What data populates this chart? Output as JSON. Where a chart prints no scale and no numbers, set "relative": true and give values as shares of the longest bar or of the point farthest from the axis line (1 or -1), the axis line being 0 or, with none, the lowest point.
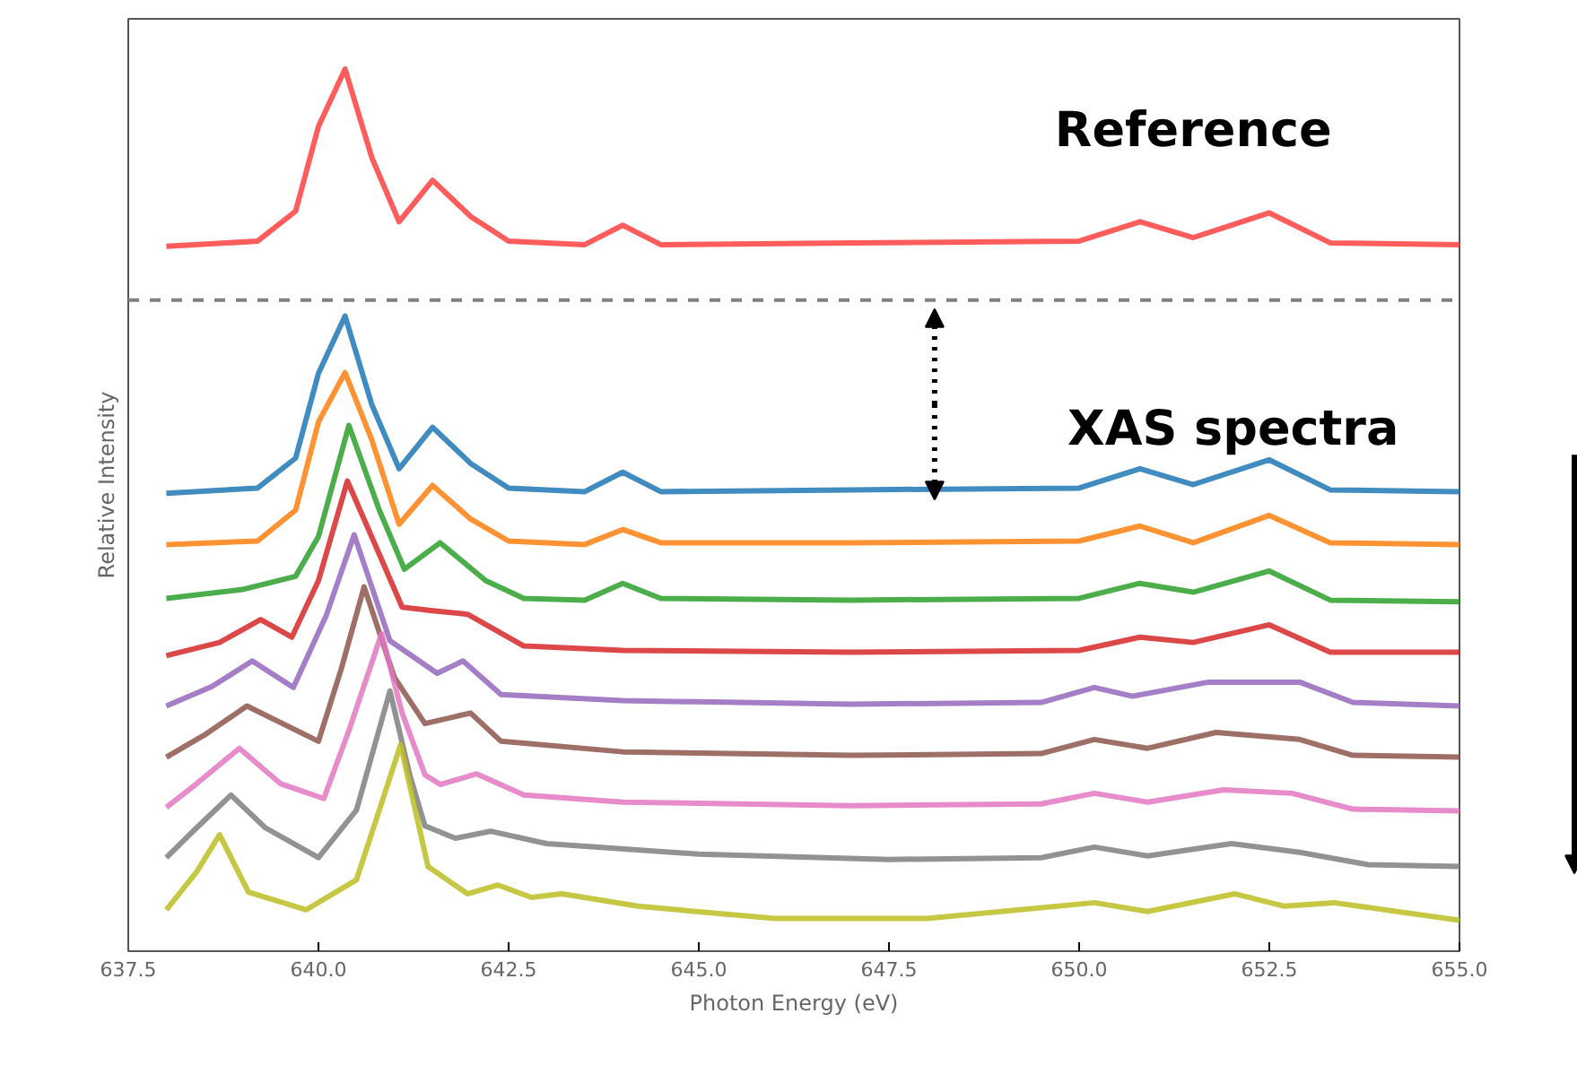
{
  "chart_data": {
    "type": "line",
    "relative": true,
    "xlabel": "Photon Energy (eV)",
    "ylabel": "Relative Intensity",
    "xlim": [
      637.5,
      655
    ],
    "xticks": [
      637.5,
      {
        "value": 640,
        "label": "640.0"
      },
      642.5,
      {
        "value": 645,
        "label": "645.0"
      },
      647.5,
      {
        "value": 650,
        "label": "650.0"
      },
      652.5,
      {
        "value": 655,
        "label": "655.0"
      }
    ],
    "grid": false,
    "marker": "none",
    "line_style": "solid",
    "ref_lines": [
      {
        "axis": "y",
        "value": 0.738,
        "color": "#808080",
        "line_style": "dashed"
      }
    ],
    "annotations": [
      "Reference",
      "XAS spectra"
    ],
    "series": [
      {
        "color": "#ff4040",
        "x": [
          638,
          639.2,
          639.7,
          640,
          640.35,
          640.7,
          641.06,
          641.5,
          642,
          642.5,
          643.5,
          644,
          644.5,
          647,
          650,
          650.8,
          651.5,
          652.5,
          653.3,
          655
        ],
        "values": [
          0.799,
          0.805,
          0.839,
          0.935,
          1,
          0.9,
          0.827,
          0.874,
          0.833,
          0.805,
          0.801,
          0.823,
          0.801,
          0.803,
          0.805,
          0.827,
          0.809,
          0.837,
          0.803,
          0.801
        ]
      },
      {
        "color": "#1f77b4",
        "x": [
          638,
          639.2,
          639.7,
          640,
          640.35,
          640.7,
          641.06,
          641.5,
          642,
          642.5,
          643.5,
          644,
          644.5,
          647,
          650,
          650.8,
          651.5,
          652.5,
          653.3,
          655
        ],
        "values": [
          0.519,
          0.525,
          0.559,
          0.655,
          0.72,
          0.62,
          0.547,
          0.594,
          0.553,
          0.525,
          0.521,
          0.543,
          0.521,
          0.523,
          0.525,
          0.547,
          0.529,
          0.557,
          0.523,
          0.521
        ]
      },
      {
        "color": "#ff7f0e",
        "x": [
          638,
          639.2,
          639.7,
          640,
          640.35,
          640.7,
          641.06,
          641.5,
          642,
          642.5,
          643.5,
          644,
          644.5,
          647,
          650,
          650.8,
          651.5,
          652.5,
          653.3,
          655
        ],
        "values": [
          0.461,
          0.465,
          0.5,
          0.6,
          0.656,
          0.58,
          0.484,
          0.528,
          0.49,
          0.465,
          0.461,
          0.478,
          0.463,
          0.463,
          0.465,
          0.482,
          0.463,
          0.494,
          0.463,
          0.461
        ]
      },
      {
        "color": "#2ca02c",
        "x": [
          638,
          639,
          639.7,
          640,
          640.4,
          640.8,
          641.13,
          641.6,
          642.2,
          642.7,
          643.5,
          644,
          644.5,
          647,
          650,
          650.8,
          651.5,
          652.5,
          653.3,
          655
        ],
        "values": [
          0.4,
          0.41,
          0.425,
          0.47,
          0.596,
          0.5,
          0.433,
          0.463,
          0.42,
          0.4,
          0.398,
          0.417,
          0.4,
          0.398,
          0.4,
          0.417,
          0.407,
          0.431,
          0.398,
          0.396
        ]
      },
      {
        "color": "#d62728",
        "x": [
          638,
          638.7,
          639.24,
          639.65,
          640,
          640.38,
          640.8,
          641.1,
          641.5,
          641.96,
          642.7,
          644,
          647,
          650,
          650.8,
          651.5,
          652.5,
          653.3,
          655
        ],
        "values": [
          0.335,
          0.35,
          0.376,
          0.356,
          0.42,
          0.533,
          0.45,
          0.39,
          0.386,
          0.382,
          0.346,
          0.341,
          0.339,
          0.341,
          0.356,
          0.35,
          0.37,
          0.339,
          0.339
        ]
      },
      {
        "color": "#9467bd",
        "x": [
          638,
          638.6,
          639.13,
          639.67,
          640.1,
          640.47,
          640.94,
          641.56,
          641.9,
          642.4,
          644,
          647,
          649.5,
          650.2,
          650.7,
          651.7,
          652.9,
          653.6,
          655
        ],
        "values": [
          0.278,
          0.3,
          0.329,
          0.299,
          0.38,
          0.472,
          0.352,
          0.315,
          0.329,
          0.291,
          0.284,
          0.28,
          0.282,
          0.299,
          0.289,
          0.305,
          0.305,
          0.282,
          0.278
        ]
      },
      {
        "color": "#8c564b",
        "x": [
          638,
          638.5,
          639.06,
          640,
          640.3,
          640.6,
          641,
          641.4,
          642,
          642.4,
          644,
          647,
          649.5,
          650.2,
          650.9,
          651.8,
          652.9,
          653.6,
          655
        ],
        "values": [
          0.22,
          0.245,
          0.278,
          0.238,
          0.32,
          0.413,
          0.31,
          0.258,
          0.27,
          0.238,
          0.226,
          0.222,
          0.224,
          0.24,
          0.23,
          0.248,
          0.24,
          0.222,
          0.22
        ]
      },
      {
        "color": "#e377c2",
        "x": [
          638,
          638.4,
          638.96,
          639.5,
          640.07,
          640.4,
          640.83,
          641.1,
          641.4,
          641.6,
          642.08,
          642.7,
          644,
          647,
          649.5,
          650.2,
          650.9,
          651.9,
          652.8,
          653.6,
          655
        ],
        "values": [
          0.163,
          0.19,
          0.23,
          0.19,
          0.173,
          0.25,
          0.36,
          0.27,
          0.2,
          0.189,
          0.201,
          0.177,
          0.169,
          0.165,
          0.167,
          0.179,
          0.169,
          0.183,
          0.179,
          0.161,
          0.159
        ]
      },
      {
        "color": "#7f7f7f",
        "x": [
          638,
          638.4,
          638.85,
          639.3,
          640,
          640.5,
          640.94,
          641.2,
          641.4,
          641.8,
          642.26,
          643,
          645,
          647.5,
          649.5,
          650.2,
          650.9,
          652,
          652.9,
          653.8,
          655
        ],
        "values": [
          0.106,
          0.14,
          0.177,
          0.14,
          0.106,
          0.16,
          0.295,
          0.2,
          0.142,
          0.128,
          0.136,
          0.122,
          0.11,
          0.104,
          0.106,
          0.118,
          0.108,
          0.122,
          0.112,
          0.098,
          0.096
        ]
      },
      {
        "color": "#bcbd22",
        "x": [
          638,
          638.4,
          638.7,
          639.08,
          639.84,
          640.5,
          640.8,
          641.08,
          641.44,
          641.96,
          642.36,
          642.8,
          643.2,
          644.2,
          646,
          648,
          650.2,
          650.9,
          652.05,
          652.7,
          653.35,
          655
        ],
        "values": [
          0.047,
          0.09,
          0.132,
          0.067,
          0.047,
          0.081,
          0.16,
          0.234,
          0.096,
          0.065,
          0.075,
          0.061,
          0.065,
          0.051,
          0.037,
          0.037,
          0.055,
          0.045,
          0.065,
          0.051,
          0.055,
          0.035
        ]
      }
    ]
  }
}
